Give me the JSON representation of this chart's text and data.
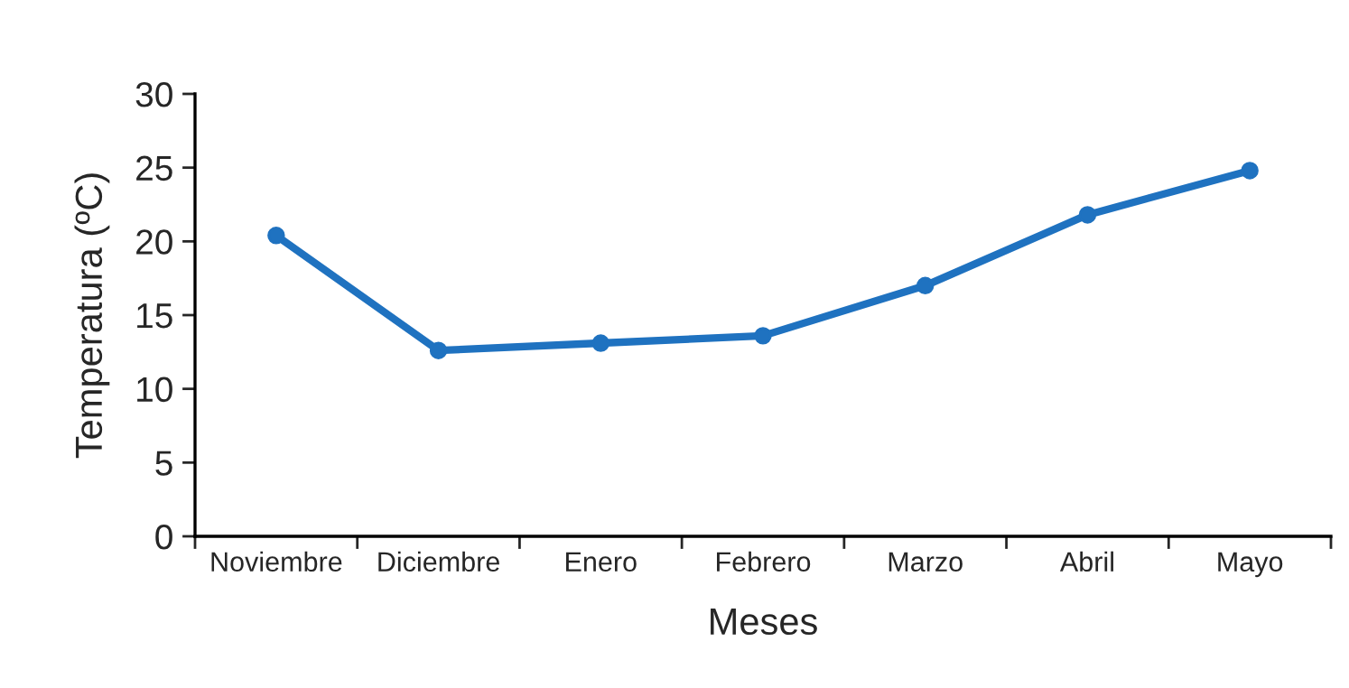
{
  "chart_data": {
    "type": "line",
    "xlabel": "Meses",
    "ylabel": "Temperatura (ºC)",
    "categories": [
      "Noviembre",
      "Diciembre",
      "Enero",
      "Febrero",
      "Marzo",
      "Abril",
      "Mayo"
    ],
    "series": [
      {
        "color": "#1f72c0",
        "values": [
          20.4,
          12.6,
          13.1,
          13.6,
          17.0,
          21.8,
          24.8
        ]
      }
    ],
    "ylim": [
      0,
      30
    ],
    "yticks": [
      0,
      5,
      10,
      15,
      20,
      25,
      30
    ],
    "grid": false,
    "legend": false,
    "marker": "circle",
    "line_style": "solid"
  }
}
